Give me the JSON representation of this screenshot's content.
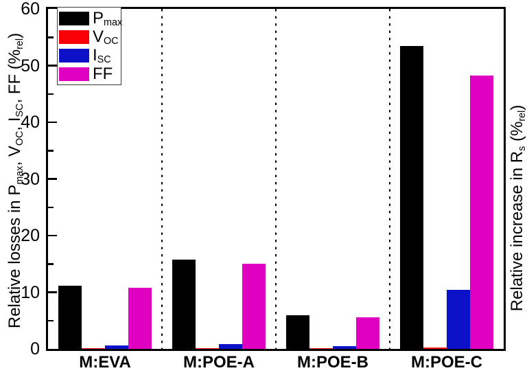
{
  "chart_data": {
    "type": "bar",
    "title": "",
    "categories": [
      "M:EVA",
      "M:POE-A",
      "M:POE-B",
      "M:POE-C"
    ],
    "series": [
      {
        "name": "Pmax",
        "color": "#000000",
        "values": [
          11.1,
          15.8,
          6.0,
          53.5
        ]
      },
      {
        "name": "VOC",
        "color": "#f80006",
        "values": [
          0.1,
          0.1,
          0.1,
          0.3
        ]
      },
      {
        "name": "ISC",
        "color": "#0d12c8",
        "values": [
          0.6,
          0.8,
          0.45,
          10.4
        ]
      },
      {
        "name": "FF",
        "color": "#df00c0",
        "values": [
          10.8,
          15.0,
          5.6,
          48.2
        ]
      }
    ],
    "ylim": [
      0,
      60
    ],
    "major_ticks": [
      0,
      10,
      20,
      30,
      40,
      50,
      60
    ],
    "minor_tick_step": 5,
    "grid": false,
    "category_separators": "dotted-vertical-lines",
    "legend_position": "top-left",
    "ylabel": "Relative losses in Pmax, VOC, ISC, FF (%rel)",
    "ylabel_right": "Relative increase in Rs (%rel)",
    "xlabel": "",
    "left_label_parts": [
      {
        "t": "Relative losses in P"
      },
      {
        "sub": "max"
      },
      {
        "t": ", V"
      },
      {
        "sub": "OC"
      },
      {
        "t": ", I"
      },
      {
        "sub": "SC"
      },
      {
        "t": ", FF (%"
      },
      {
        "sub": "rel"
      },
      {
        "t": ")"
      }
    ],
    "right_label_parts": [
      {
        "t": "Relative increase in R"
      },
      {
        "sub": "s"
      },
      {
        "t": " (%"
      },
      {
        "sub": "rel"
      },
      {
        "t": ")"
      }
    ],
    "legend": {
      "entries": [
        {
          "main": "P",
          "sub": "max",
          "color": "#000000"
        },
        {
          "main": "V",
          "sub": "OC",
          "color": "#f80006"
        },
        {
          "main": "I",
          "sub": "SC",
          "color": "#0d12c8"
        },
        {
          "main": "FF",
          "sub": "",
          "color": "#df00c0"
        }
      ]
    },
    "colors": {
      "frame": "#000000",
      "background": "#ffffff",
      "separator": "#000000"
    }
  }
}
